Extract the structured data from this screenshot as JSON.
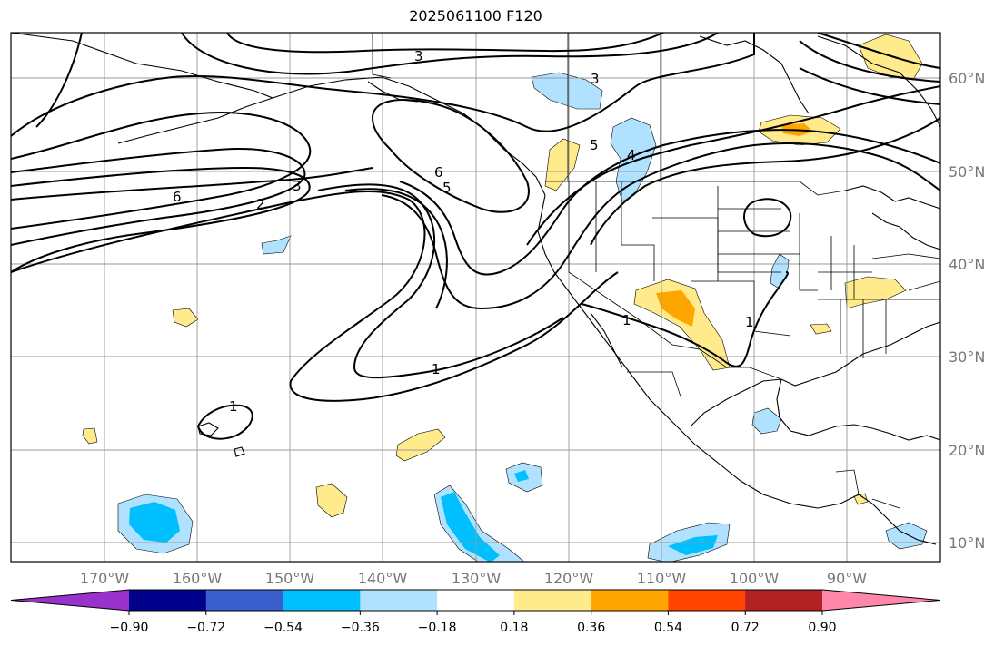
{
  "title": "2025061100 F120",
  "lon_labels": [
    "170°W",
    "160°W",
    "150°W",
    "140°W",
    "130°W",
    "120°W",
    "110°W",
    "100°W",
    "90°W"
  ],
  "lat_labels": [
    "60°N",
    "50°N",
    "40°N",
    "30°N",
    "20°N",
    "10°N"
  ],
  "colorbar": {
    "colors": [
      "#9932cc",
      "#00008b",
      "#3a5fcd",
      "#00bfff",
      "#b0e2ff",
      "#ffffff",
      "#ffeb8b",
      "#ffa500",
      "#ff4500",
      "#b22222",
      "#ff88aa"
    ],
    "ticks": [
      "−0.90",
      "−0.72",
      "−0.54",
      "−0.36",
      "−0.18",
      "0.18",
      "0.36",
      "0.54",
      "0.72",
      "0.90"
    ]
  },
  "contour_labels": [
    {
      "text": "3"
    },
    {
      "text": "3"
    },
    {
      "text": "6"
    },
    {
      "text": "3"
    },
    {
      "text": "2"
    },
    {
      "text": "6"
    },
    {
      "text": "5"
    },
    {
      "text": "5"
    },
    {
      "text": "4"
    },
    {
      "text": "1"
    },
    {
      "text": "1"
    },
    {
      "text": "1"
    },
    {
      "text": "1"
    }
  ]
}
